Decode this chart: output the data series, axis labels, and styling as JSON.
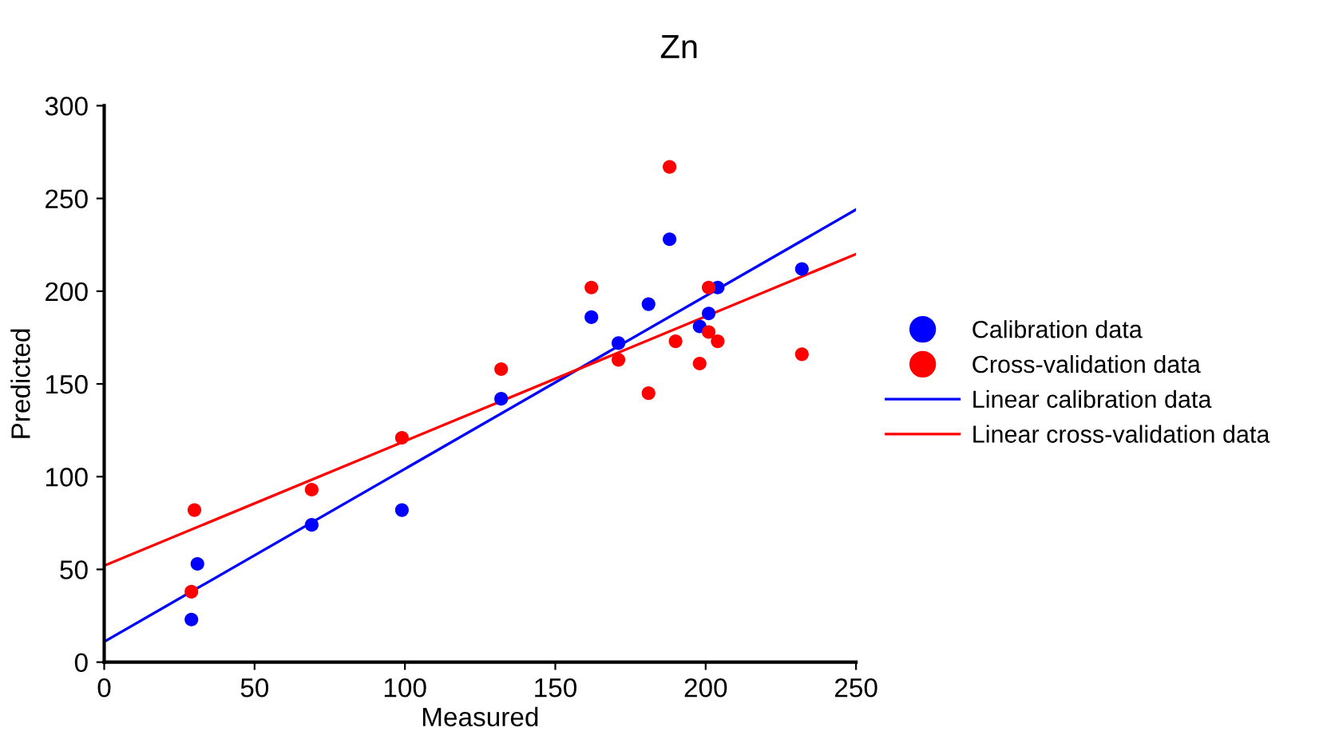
{
  "chart_data": {
    "type": "scatter",
    "title": "Zn",
    "xlabel": "Measured",
    "ylabel": "Predicted",
    "xlim": [
      0,
      250
    ],
    "xticks": [
      0,
      50,
      100,
      150,
      200,
      250
    ],
    "ylim": [
      0,
      300
    ],
    "yticks": [
      0,
      50,
      100,
      150,
      200,
      250,
      300
    ],
    "grid": false,
    "legend": "right",
    "series": [
      {
        "name": "Calibration data",
        "color": "#0000ff",
        "marker": "circle",
        "x": [
          29,
          31,
          69,
          99,
          132,
          162,
          171,
          181,
          188,
          198,
          201,
          204,
          232
        ],
        "values": [
          23,
          53,
          74,
          82,
          142,
          186,
          172,
          193,
          228,
          181,
          188,
          202,
          212
        ]
      },
      {
        "name": "Cross-validation data",
        "color": "#ff0000",
        "marker": "circle",
        "x": [
          29,
          30,
          69,
          99,
          132,
          162,
          171,
          181,
          188,
          190,
          198,
          201,
          201,
          204,
          232
        ],
        "values": [
          38,
          82,
          93,
          121,
          158,
          202,
          163,
          145,
          267,
          173,
          161,
          202,
          178,
          173,
          166
        ]
      },
      {
        "name": "Linear calibration data",
        "color": "#0000ff",
        "type": "line",
        "marker": "none",
        "x": [
          0,
          250
        ],
        "values": [
          11,
          244
        ]
      },
      {
        "name": "Linear cross-validation data",
        "color": "#ff0000",
        "type": "line",
        "marker": "none",
        "x": [
          0,
          250
        ],
        "values": [
          52,
          220
        ]
      }
    ]
  }
}
